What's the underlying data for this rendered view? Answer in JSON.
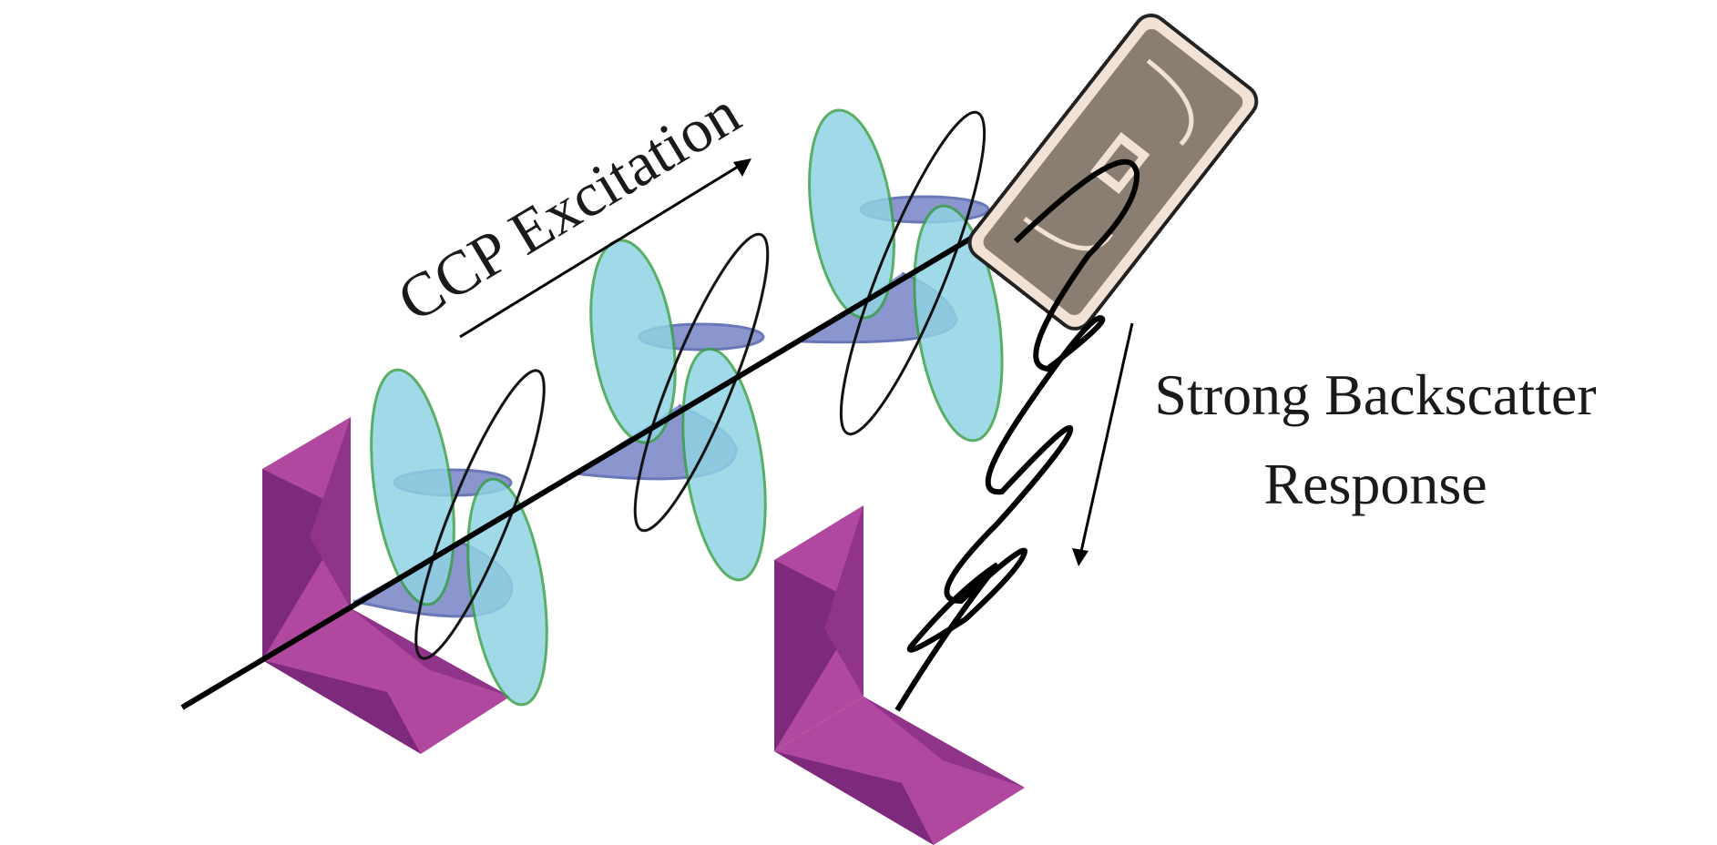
{
  "labels": {
    "excitation": "CCP Excitation",
    "response_line1": "Strong Backscatter",
    "response_line2": "Response"
  },
  "colors": {
    "reflector_light": "#a8449a",
    "reflector_dark": "#7a2878",
    "e_field_fill": "#8fd3e3",
    "e_field_stroke": "#3aa14a",
    "h_field_fill": "#5a6bb8",
    "h_field_stroke": "#2d3f9a",
    "axis": "#000000",
    "tag_body": "#8a7d72",
    "tag_inlay": "#f3e4d8"
  },
  "icons": [
    "corner-reflector-icon",
    "rfid-tag-icon"
  ]
}
